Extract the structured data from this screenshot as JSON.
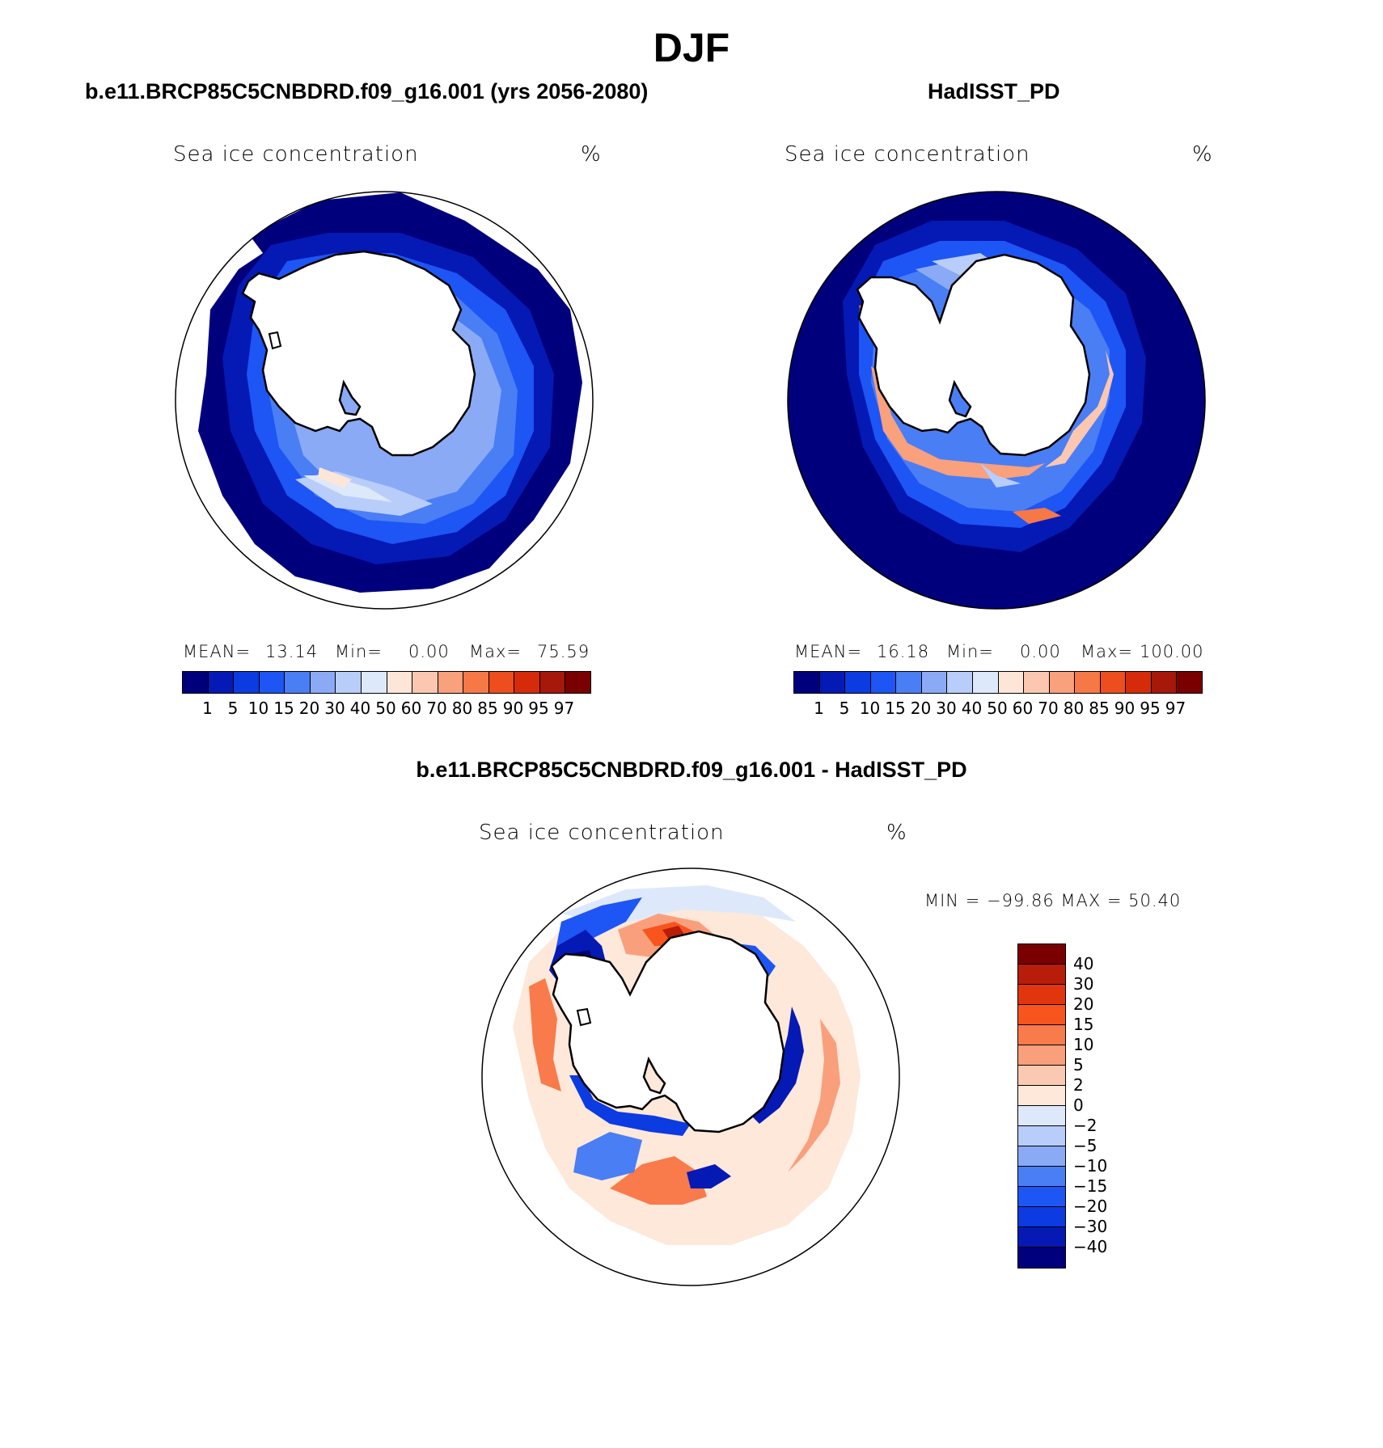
{
  "title": "DJF",
  "panels": {
    "left": {
      "subtitle": "b.e11.BRCP85C5CNBDRD.f09_g16.001 (yrs 2056-2080)",
      "variable": "Sea ice concentration",
      "unit": "%",
      "stats": {
        "mean_label": "MEAN=",
        "mean": "13.14",
        "min_label": "Min=",
        "min": "0.00",
        "max_label": "Max=",
        "max": "75.59"
      }
    },
    "right": {
      "subtitle": "HadISST_PD",
      "variable": "Sea ice concentration",
      "unit": "%",
      "stats": {
        "mean_label": "MEAN=",
        "mean": "16.18",
        "min_label": "Min=",
        "min": "0.00",
        "max_label": "Max=",
        "max": "100.00"
      }
    },
    "bottom": {
      "subtitle": "b.e11.BRCP85C5CNBDRD.f09_g16.001 - HadISST_PD",
      "variable": "Sea ice concentration",
      "unit": "%",
      "minmax": "MIN = −99.86  MAX =   50.40"
    }
  },
  "colorbar_abs": {
    "colors": [
      "#00007d",
      "#0519b5",
      "#0c3be1",
      "#1e55f5",
      "#4a7ef5",
      "#8aaaf5",
      "#b8cdfa",
      "#dde9fb",
      "#fde5d8",
      "#fbc7b0",
      "#f9a07d",
      "#f67847",
      "#ee4d1e",
      "#d62b0a",
      "#a6180a",
      "#7a0000"
    ],
    "labels": [
      "1",
      "5",
      "10",
      "15",
      "20",
      "30",
      "40",
      "50",
      "60",
      "70",
      "80",
      "85",
      "90",
      "95",
      "97"
    ]
  },
  "colorbar_diff": {
    "colors": [
      "#7a0000",
      "#b81d0a",
      "#e2350e",
      "#f8541e",
      "#f97a4a",
      "#f99f7c",
      "#fbc9b2",
      "#fde8da",
      "#dde9fb",
      "#b8cdfa",
      "#8aaaf5",
      "#4a7ef5",
      "#1e55f5",
      "#0c3be1",
      "#0519b5",
      "#00007d"
    ],
    "labels": [
      "40",
      "30",
      "20",
      "15",
      "10",
      "5",
      "2",
      "0",
      "−2",
      "−5",
      "−10",
      "−15",
      "−20",
      "−30",
      "−40"
    ]
  },
  "colors": {
    "land": "#ffffff",
    "coast": "#000000",
    "ocean_zero": "#00007d",
    "diff_zero": "#ffffff"
  }
}
